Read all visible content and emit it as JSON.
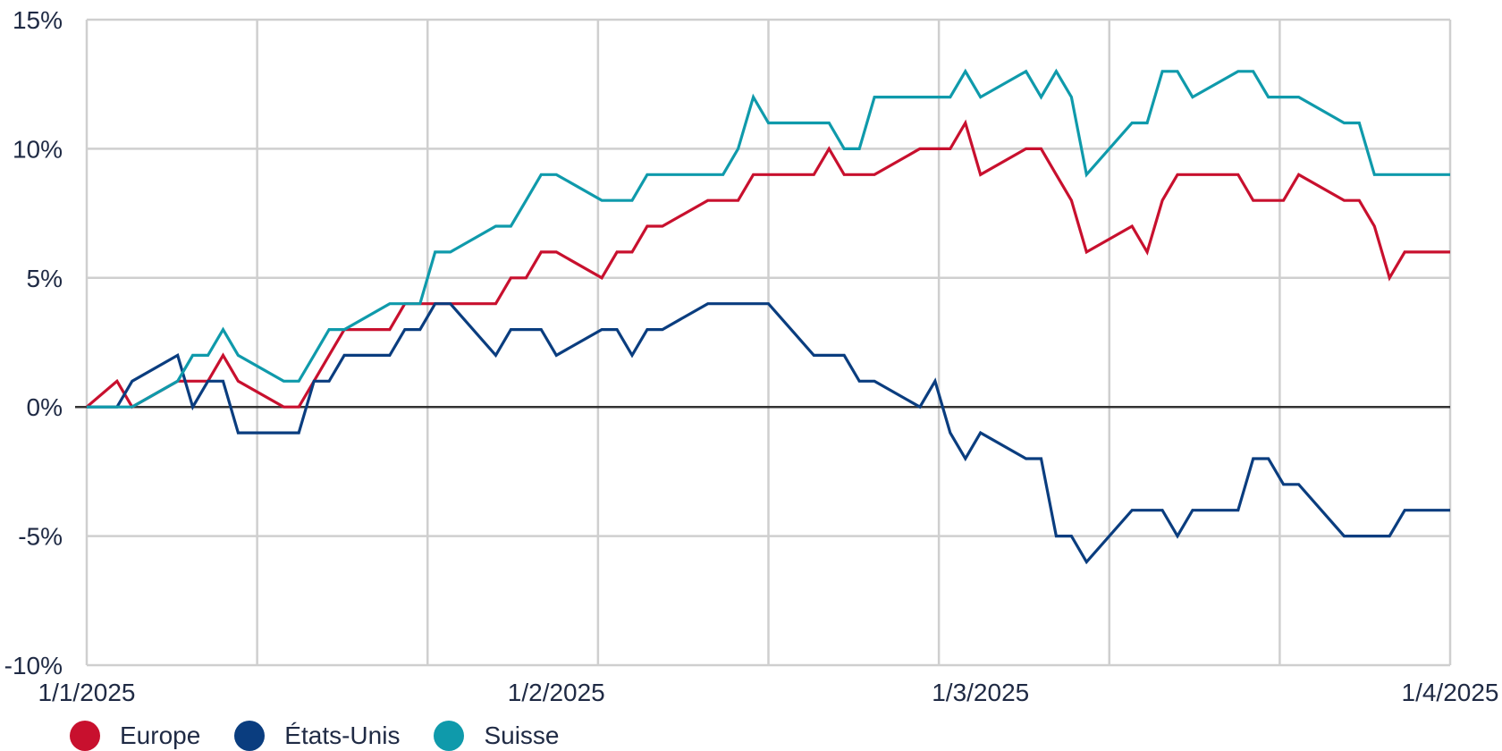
{
  "chart_data": {
    "type": "line",
    "x_axis": {
      "range": [
        "1/1/2025",
        "1/4/2025"
      ],
      "tick_labels": [
        "1/1/2025",
        "1/2/2025",
        "1/3/2025",
        "1/4/2025"
      ]
    },
    "y_axis": {
      "range": [
        -10,
        15
      ],
      "unit": "%",
      "ticks": [
        15,
        10,
        5,
        0,
        -5,
        -10
      ],
      "tick_labels": [
        "15%",
        "10%",
        "5%",
        "0%",
        "-5%",
        "-10%"
      ]
    },
    "grid": true,
    "zero_line": true,
    "legend_position": "bottom-left",
    "x_days": [
      0,
      2,
      3,
      6,
      7,
      8,
      9,
      10,
      13,
      14,
      15,
      16,
      17,
      20,
      21,
      22,
      23,
      24,
      27,
      28,
      29,
      30,
      31,
      34,
      35,
      36,
      37,
      38,
      41,
      42,
      43,
      44,
      45,
      48,
      49,
      50,
      51,
      52,
      55,
      56,
      57,
      58,
      59,
      62,
      63,
      64,
      65,
      66,
      69,
      70,
      71,
      72,
      73,
      76,
      77,
      78,
      79,
      80,
      83,
      84,
      85,
      86,
      87,
      90
    ],
    "series": [
      {
        "name": "Europe",
        "color": "#c8102e",
        "values": [
          0,
          1,
          0,
          1,
          1,
          1,
          2,
          1,
          0,
          0,
          1,
          2,
          3,
          3,
          4,
          4,
          4,
          4,
          4,
          5,
          5,
          6,
          6,
          5,
          6,
          6,
          7,
          7,
          8,
          8,
          8,
          9,
          9,
          9,
          10,
          9,
          9,
          9,
          10,
          10,
          10,
          11,
          9,
          10,
          10,
          9,
          8,
          6,
          7,
          6,
          8,
          9,
          9,
          9,
          8,
          8,
          8,
          9,
          8,
          8,
          7,
          5,
          6,
          6
        ]
      },
      {
        "name": "États-Unis",
        "color": "#0a3d7f",
        "values": [
          0,
          0,
          1,
          2,
          0,
          1,
          1,
          -1,
          -1,
          -1,
          1,
          1,
          2,
          2,
          3,
          3,
          4,
          4,
          2,
          3,
          3,
          3,
          2,
          3,
          3,
          2,
          3,
          3,
          4,
          4,
          4,
          4,
          4,
          2,
          2,
          2,
          1,
          1,
          0,
          1,
          -1,
          -2,
          -1,
          -2,
          -2,
          -5,
          -5,
          -6,
          -4,
          -4,
          -4,
          -5,
          -4,
          -4,
          -2,
          -2,
          -3,
          -3,
          -5,
          -5,
          -5,
          -5,
          -4,
          -4
        ]
      },
      {
        "name": "Suisse",
        "color": "#0f9aab",
        "values": [
          0,
          0,
          0,
          1,
          2,
          2,
          3,
          2,
          1,
          1,
          2,
          3,
          3,
          4,
          4,
          4,
          6,
          6,
          7,
          7,
          8,
          9,
          9,
          8,
          8,
          8,
          9,
          9,
          9,
          9,
          10,
          12,
          11,
          11,
          11,
          10,
          10,
          12,
          12,
          12,
          12,
          13,
          12,
          13,
          12,
          13,
          12,
          9,
          11,
          11,
          13,
          13,
          12,
          13,
          13,
          12,
          12,
          12,
          11,
          11,
          9,
          9,
          9,
          9
        ]
      }
    ]
  }
}
